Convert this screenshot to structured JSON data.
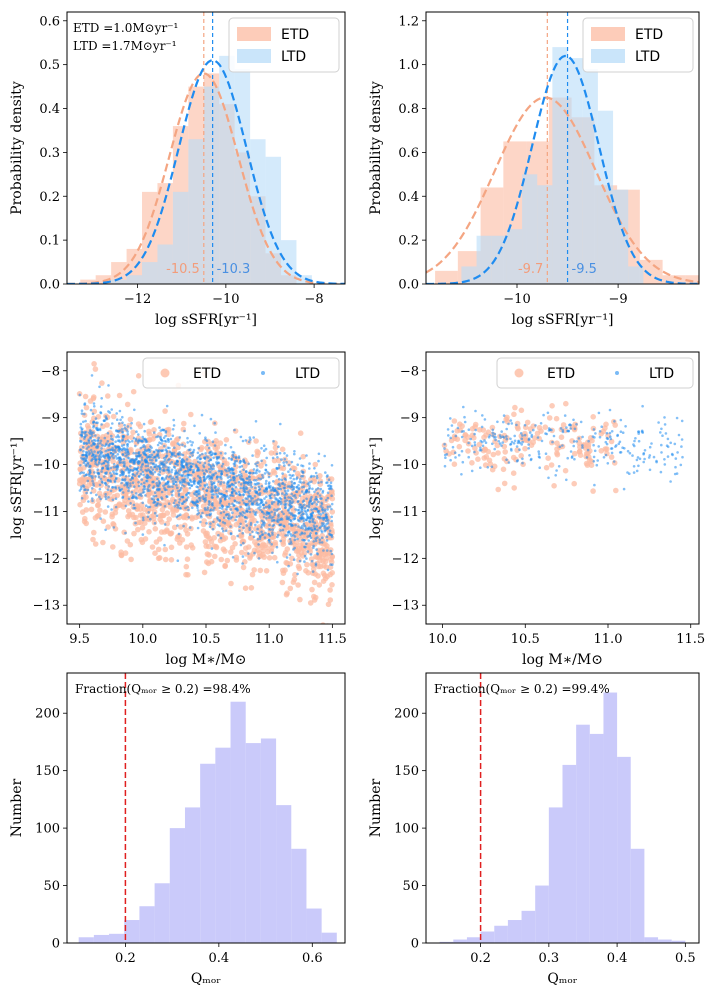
{
  "colors": {
    "etd_fill": "#fcbba1",
    "etd_line": "#f4a582",
    "etd_text": "#f39c7a",
    "ltd_fill": "#b8dcf8",
    "ltd_line": "#1f8cf0",
    "ltd_text": "#4a90e2",
    "qmor_fill": "#c7c7fa",
    "red_line": "#e02020"
  },
  "chart_data": [
    {
      "id": "p1",
      "type": "histogram",
      "xlabel": "log sSFR[yr⁻¹]",
      "ylabel": "Probability density",
      "xlim": [
        -13.6,
        -7.3
      ],
      "ylim": [
        0,
        0.62
      ],
      "xticks": [
        -12,
        -10,
        -8
      ],
      "xtick_labels": [
        "−12",
        "−10",
        "−8"
      ],
      "yticks": [
        0,
        0.1,
        0.2,
        0.3,
        0.4,
        0.5,
        0.6
      ],
      "ytick_labels": [
        "0.0",
        "0.1",
        "0.2",
        "0.3",
        "0.4",
        "0.5",
        "0.6"
      ],
      "legend": [
        "ETD",
        "LTD"
      ],
      "legend_loc": "top-right",
      "annotation_lines": [
        "ETD =1.0M⊙yr⁻¹",
        "LTD =1.7M⊙yr⁻¹"
      ],
      "series": [
        {
          "name": "ETD",
          "bin_width": 0.35,
          "bin_starts": [
            -13.3,
            -12.95,
            -12.6,
            -12.25,
            -11.9,
            -11.55,
            -11.2,
            -10.85,
            -10.5,
            -10.15,
            -9.8,
            -9.45,
            -9.1,
            -8.75
          ],
          "heights": [
            0.01,
            0.02,
            0.05,
            0.08,
            0.21,
            0.23,
            0.36,
            0.45,
            0.48,
            0.41,
            0.3,
            0.2,
            0.07,
            0.02
          ],
          "curve_mean": -10.5,
          "curve_sd": 0.78,
          "curve_peak": 0.48,
          "median": -10.5,
          "median_label": "-10.5"
        },
        {
          "name": "LTD",
          "bin_width": 0.35,
          "bin_starts": [
            -12.6,
            -12.25,
            -11.9,
            -11.55,
            -11.2,
            -10.85,
            -10.5,
            -10.15,
            -9.8,
            -9.45,
            -9.1,
            -8.75,
            -8.4
          ],
          "heights": [
            0.01,
            0.02,
            0.05,
            0.09,
            0.21,
            0.33,
            0.45,
            0.52,
            0.49,
            0.33,
            0.29,
            0.1,
            0.02
          ],
          "curve_mean": -10.3,
          "curve_sd": 0.77,
          "curve_peak": 0.51,
          "median": -10.3,
          "median_label": "-10.3"
        }
      ]
    },
    {
      "id": "p2",
      "type": "histogram",
      "xlabel": "log sSFR[yr⁻¹]",
      "ylabel": "Probability density",
      "xlim": [
        -10.9,
        -8.2
      ],
      "ylim": [
        0,
        1.24
      ],
      "xticks": [
        -10,
        -9
      ],
      "xtick_labels": [
        "−10",
        "−9"
      ],
      "yticks": [
        0,
        0.2,
        0.4,
        0.6,
        0.8,
        1.0,
        1.2
      ],
      "ytick_labels": [
        "0.0",
        "0.2",
        "0.4",
        "0.6",
        "0.8",
        "1.0",
        "1.2"
      ],
      "legend": [
        "ETD",
        "LTD"
      ],
      "legend_loc": "top-right",
      "series": [
        {
          "name": "ETD",
          "bin_width": 0.225,
          "bin_starts": [
            -10.81,
            -10.585,
            -10.36,
            -10.135,
            -9.91,
            -9.685,
            -9.46,
            -9.235,
            -9.01,
            -8.785,
            -8.56,
            -8.335
          ],
          "heights": [
            0.06,
            0.15,
            0.44,
            0.65,
            0.65,
            0.85,
            0.76,
            0.45,
            0.43,
            0.11,
            0.04,
            0.04
          ],
          "curve_mean": -9.72,
          "curve_sd": 0.5,
          "curve_peak": 0.85,
          "median": -9.7,
          "median_label": "-9.7"
        },
        {
          "name": "LTD",
          "bin_width": 0.15,
          "bin_starts": [
            -10.55,
            -10.4,
            -10.25,
            -10.1,
            -9.95,
            -9.8,
            -9.65,
            -9.5,
            -9.35,
            -9.2,
            -9.05,
            -8.9
          ],
          "heights": [
            0.08,
            0.22,
            0.22,
            0.25,
            0.5,
            0.45,
            1.08,
            1.03,
            0.98,
            0.79,
            0.43,
            0.08
          ],
          "curve_mean": -9.52,
          "curve_sd": 0.33,
          "curve_peak": 1.04,
          "median": -9.5,
          "median_label": "-9.5"
        }
      ]
    },
    {
      "id": "p3",
      "type": "scatter",
      "xlabel": "log M∗/M⊙",
      "ylabel": "log sSFR[yr⁻¹]",
      "xlim": [
        9.4,
        11.6
      ],
      "ylim": [
        -13.4,
        -7.6
      ],
      "xticks": [
        9.5,
        10.0,
        10.5,
        11.0,
        11.5
      ],
      "xtick_labels": [
        "9.5",
        "10.0",
        "10.5",
        "11.0",
        "11.5"
      ],
      "yticks": [
        -13,
        -12,
        -11,
        -10,
        -9,
        -8
      ],
      "ytick_labels": [
        "−13",
        "−12",
        "−11",
        "−10",
        "−9",
        "−8"
      ],
      "legend": [
        "ETD",
        "LTD"
      ],
      "legend_loc": "top-right",
      "series": [
        {
          "name": "ETD",
          "x_range": [
            9.5,
            11.5
          ],
          "y_at_xmin": -9.9,
          "slope": -0.8,
          "scatter_sd": 0.7,
          "count": 1400,
          "seed": 11
        },
        {
          "name": "LTD",
          "x_range": [
            9.5,
            11.5
          ],
          "y_at_xmin": -9.65,
          "slope": -0.75,
          "scatter_sd": 0.5,
          "count": 2200,
          "seed": 23
        }
      ]
    },
    {
      "id": "p4",
      "type": "scatter",
      "xlabel": "log M∗/M⊙",
      "ylabel": "log sSFR[yr⁻¹]",
      "xlim": [
        9.9,
        11.55
      ],
      "ylim": [
        -13.4,
        -7.6
      ],
      "xticks": [
        10.0,
        10.5,
        11.0,
        11.5
      ],
      "xtick_labels": [
        "10.0",
        "10.5",
        "11.0",
        "11.5"
      ],
      "yticks": [
        -13,
        -12,
        -11,
        -10,
        -9,
        -8
      ],
      "ytick_labels": [
        "−13",
        "−12",
        "−11",
        "−10",
        "−9",
        "−8"
      ],
      "legend": [
        "ETD",
        "LTD"
      ],
      "legend_loc": "top-right",
      "series": [
        {
          "name": "ETD",
          "x_range": [
            10.0,
            11.05
          ],
          "y_at_xmin": -9.55,
          "slope": -0.1,
          "scatter_sd": 0.38,
          "count": 170,
          "seed": 37
        },
        {
          "name": "LTD",
          "x_range": [
            10.0,
            11.45
          ],
          "y_at_xmin": -9.45,
          "slope": -0.15,
          "scatter_sd": 0.32,
          "count": 300,
          "seed": 53
        }
      ]
    },
    {
      "id": "p5",
      "type": "histogram",
      "xlabel": "Qₘₒᵣ",
      "ylabel": "Number",
      "xlim": [
        0.075,
        0.67
      ],
      "ylim": [
        0,
        235
      ],
      "xticks": [
        0.2,
        0.4,
        0.6
      ],
      "xtick_labels": [
        "0.2",
        "0.4",
        "0.6"
      ],
      "yticks": [
        0,
        50,
        100,
        150,
        200
      ],
      "ytick_labels": [
        "0",
        "50",
        "100",
        "150",
        "200"
      ],
      "threshold": 0.2,
      "annotation": "Fraction(Qₘₒᵣ ≥ 0.2) =98.4%",
      "series": [
        {
          "name": "Qmor",
          "bin_width": 0.0325,
          "bin_starts": [
            0.1,
            0.1325,
            0.165,
            0.1975,
            0.23,
            0.2625,
            0.295,
            0.3275,
            0.36,
            0.3925,
            0.425,
            0.4575,
            0.49,
            0.5225,
            0.555,
            0.5875,
            0.62
          ],
          "heights": [
            5,
            7,
            8,
            20,
            32,
            52,
            100,
            118,
            156,
            170,
            210,
            174,
            178,
            120,
            82,
            30,
            9
          ]
        }
      ]
    },
    {
      "id": "p6",
      "type": "histogram",
      "xlabel": "Qₘₒᵣ",
      "ylabel": "Number",
      "xlim": [
        0.12,
        0.52
      ],
      "ylim": [
        0,
        235
      ],
      "xticks": [
        0.2,
        0.3,
        0.4,
        0.5
      ],
      "xtick_labels": [
        "0.2",
        "0.3",
        "0.4",
        "0.5"
      ],
      "yticks": [
        0,
        50,
        100,
        150,
        200
      ],
      "ytick_labels": [
        "0",
        "50",
        "100",
        "150",
        "200"
      ],
      "threshold": 0.2,
      "annotation": "Fraction(Qₘₒᵣ ≥ 0.2) =99.4%",
      "series": [
        {
          "name": "Qmor",
          "bin_width": 0.02,
          "bin_starts": [
            0.14,
            0.16,
            0.18,
            0.2,
            0.22,
            0.24,
            0.26,
            0.28,
            0.3,
            0.32,
            0.34,
            0.36,
            0.38,
            0.4,
            0.42,
            0.44,
            0.46,
            0.48
          ],
          "heights": [
            1,
            3,
            5,
            10,
            15,
            20,
            28,
            50,
            118,
            155,
            190,
            182,
            218,
            162,
            82,
            5,
            3,
            2
          ]
        }
      ]
    }
  ]
}
